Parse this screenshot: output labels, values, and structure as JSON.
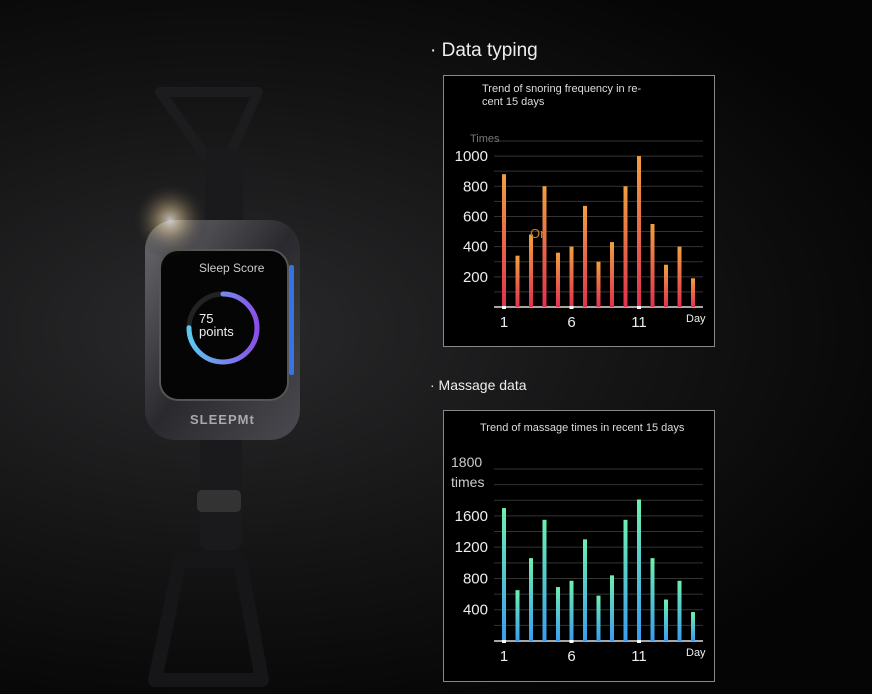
{
  "sections": {
    "data_typing": "· Data typing",
    "massage_data": "· Massage data"
  },
  "watch": {
    "screen_title": "Sleep Score",
    "score_value": "75",
    "score_unit": "points",
    "score_fraction": 0.75,
    "brand": "SLEEPMt",
    "ring_colors": [
      "#5ec8f0",
      "#8a4fe8"
    ]
  },
  "chart_data": [
    {
      "type": "bar",
      "title": "Trend of snoring frequency in re-\ncent 15 days",
      "title_lines": [
        "Trend of snoring frequency in re-",
        "cent 15 days"
      ],
      "ylabel": "Times",
      "xlabel": "Day",
      "overlay_text": "On",
      "x": [
        1,
        2,
        3,
        4,
        5,
        6,
        7,
        8,
        9,
        10,
        11,
        12,
        13,
        14,
        15
      ],
      "values": [
        880,
        340,
        480,
        800,
        360,
        400,
        670,
        300,
        430,
        800,
        1000,
        550,
        280,
        400,
        190
      ],
      "yticks": [
        200,
        400,
        600,
        800,
        1000
      ],
      "xticks": [
        1,
        6,
        11
      ],
      "ylim": [
        0,
        1100
      ],
      "grid": true,
      "colors": [
        "#f0a040",
        "#e03050"
      ]
    },
    {
      "type": "bar",
      "title": "Trend of massage times in recent 15 days",
      "title_lines": [
        "Trend of massage times in recent 15 days"
      ],
      "ylabel_lines": [
        "1800",
        "times"
      ],
      "xlabel": "Day",
      "x": [
        1,
        2,
        3,
        4,
        5,
        6,
        7,
        8,
        9,
        10,
        11,
        12,
        13,
        14,
        15
      ],
      "values": [
        1700,
        650,
        1060,
        1550,
        690,
        770,
        1300,
        580,
        840,
        1550,
        1810,
        1060,
        530,
        770,
        370
      ],
      "yticks": [
        400,
        800,
        1200,
        1600
      ],
      "xticks": [
        1,
        6,
        11
      ],
      "ylim": [
        0,
        2200
      ],
      "grid": true,
      "colors": [
        "#6ef0b0",
        "#3a9cf0"
      ]
    }
  ]
}
